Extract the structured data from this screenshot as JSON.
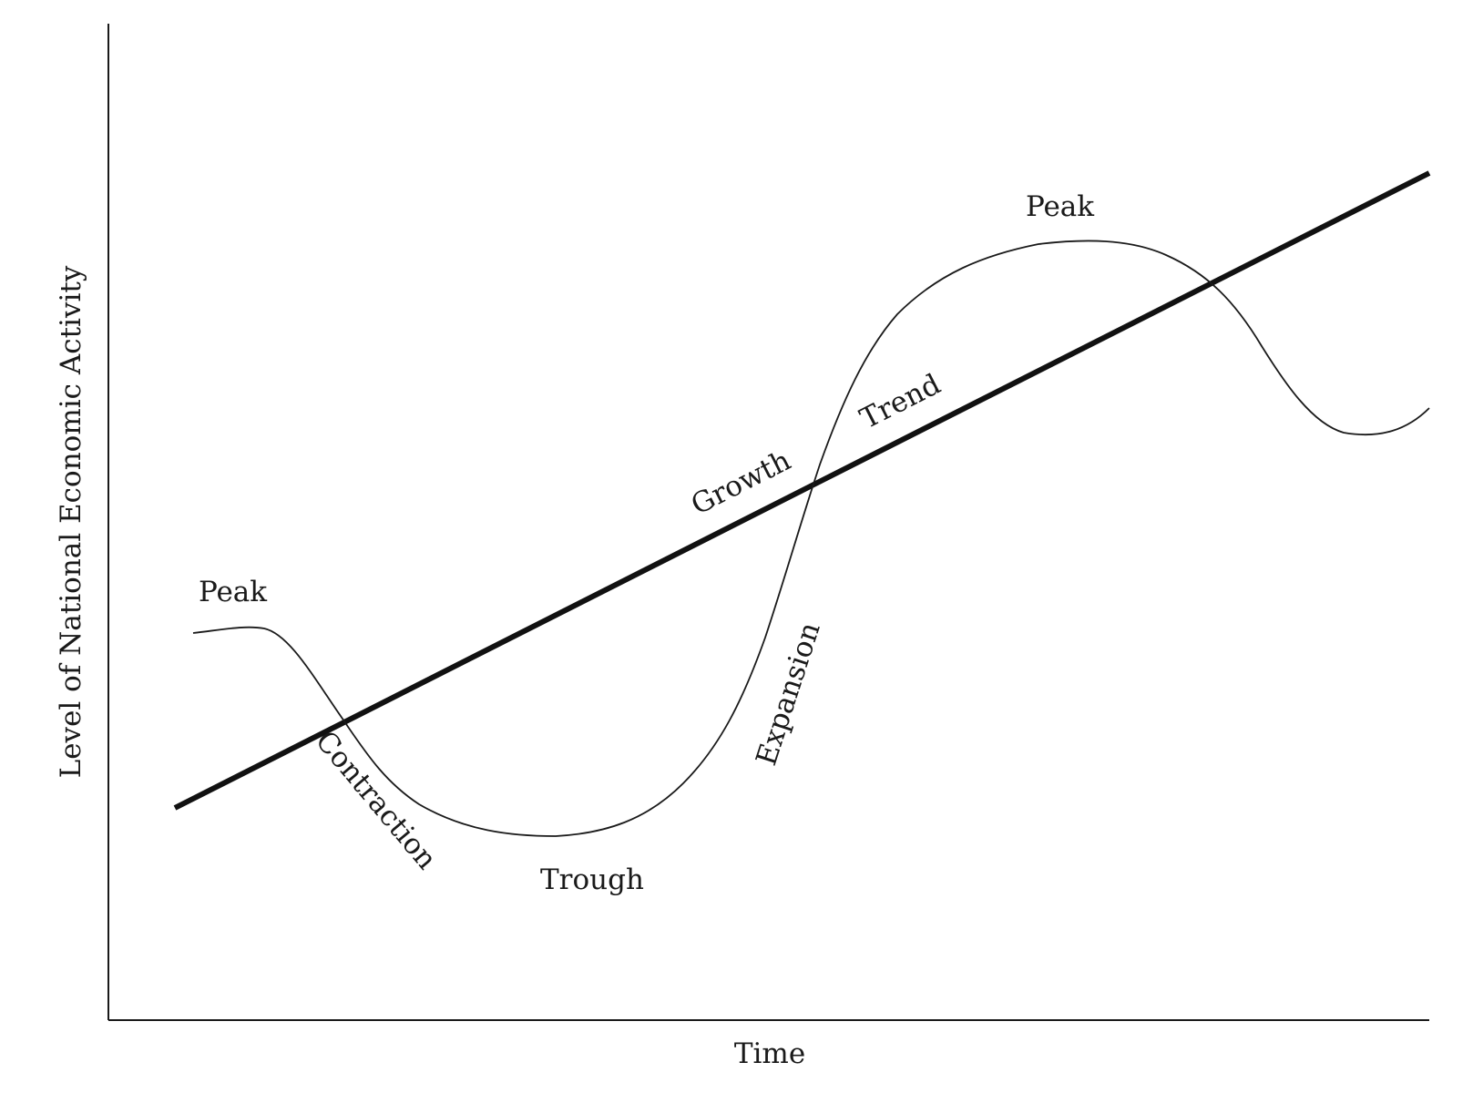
{
  "axes": {
    "x_label": "Time",
    "y_label": "Level of National Economic Activity"
  },
  "labels": {
    "peak_left": "Peak",
    "peak_right": "Peak",
    "contraction": "Contraction",
    "trough": "Trough",
    "expansion": "Expansion",
    "growth": "Growth",
    "trend": "Trend"
  },
  "colors": {
    "line": "#1a1a1a",
    "background": "#ffffff"
  }
}
